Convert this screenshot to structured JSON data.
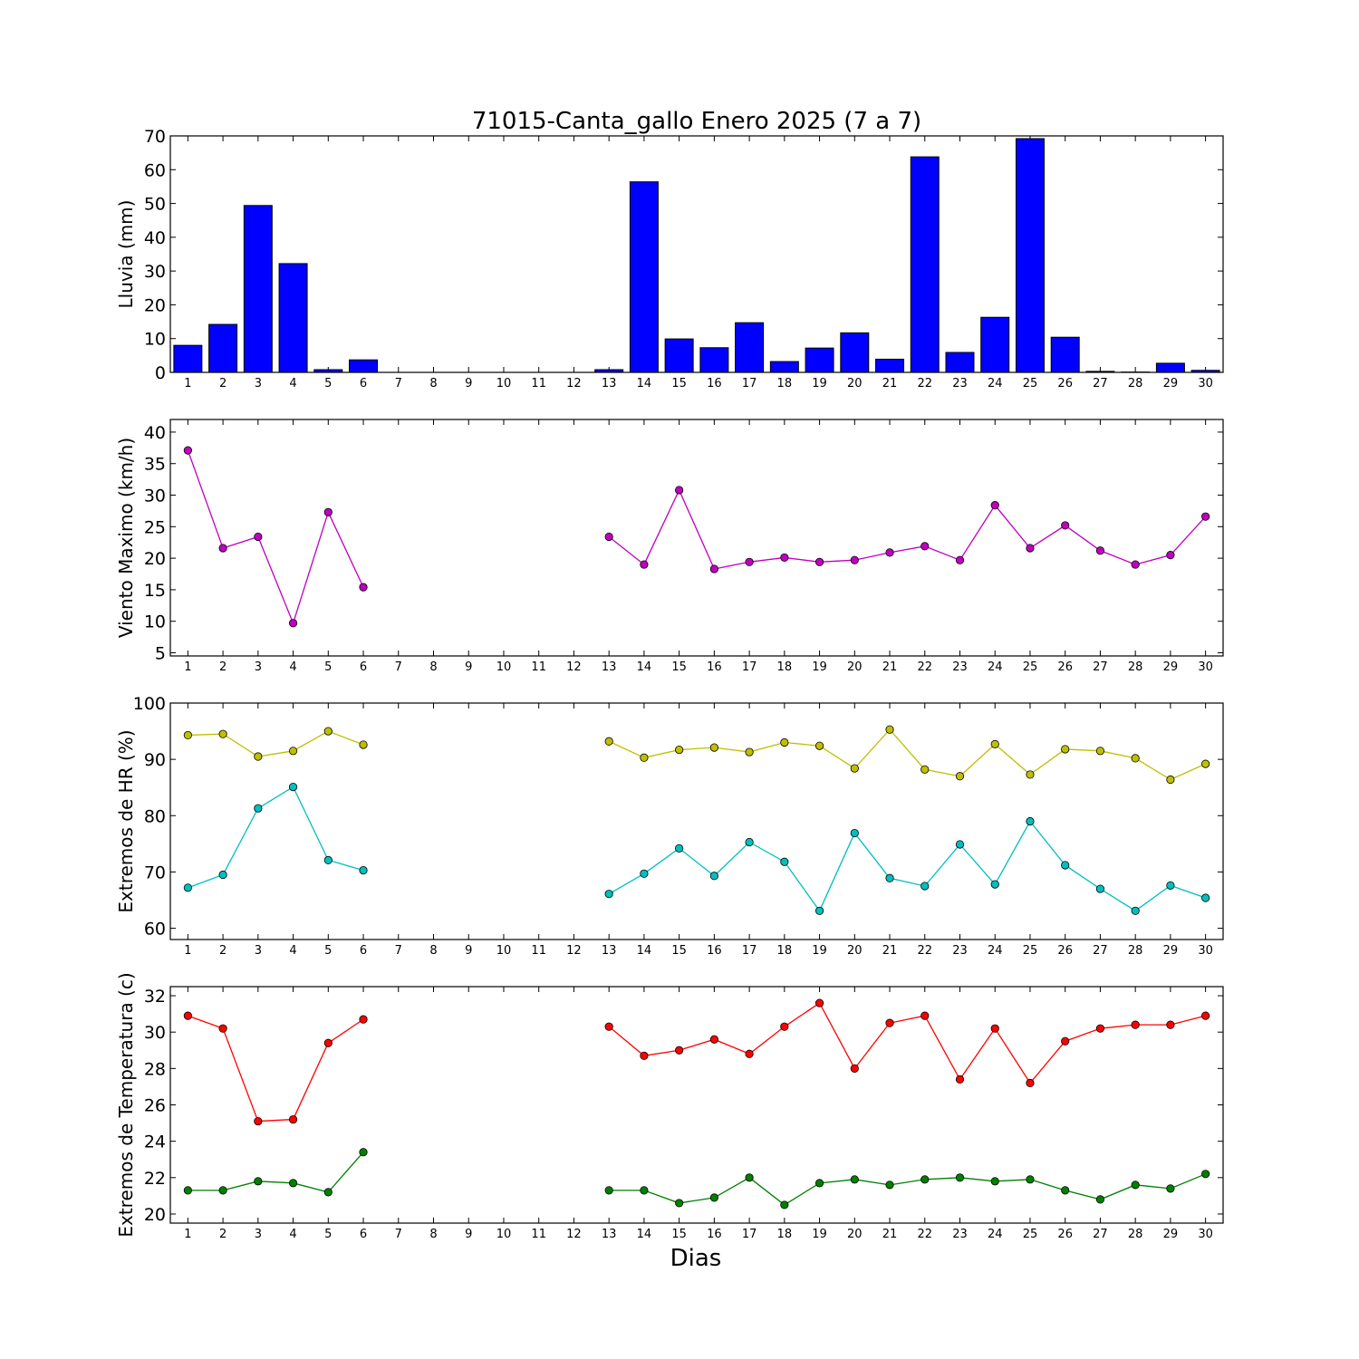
{
  "title": "71015-Canta_gallo Enero 2025  (7 a 7)",
  "xlabel": "Dias",
  "days": [
    1,
    2,
    3,
    4,
    5,
    6,
    7,
    8,
    9,
    10,
    11,
    12,
    13,
    14,
    15,
    16,
    17,
    18,
    19,
    20,
    21,
    22,
    23,
    24,
    25,
    26,
    27,
    28,
    29,
    30
  ],
  "chart_data": [
    {
      "type": "bar",
      "ylabel": "Lluvia (mm)",
      "ylim": [
        0,
        70
      ],
      "yticks": [
        0,
        10,
        20,
        30,
        40,
        50,
        60,
        70
      ],
      "series": [
        {
          "color": "#0000ff",
          "values": [
            8.0,
            14.2,
            49.4,
            32.2,
            0.8,
            3.7,
            null,
            null,
            null,
            null,
            null,
            null,
            0.8,
            56.4,
            9.9,
            7.3,
            14.7,
            3.2,
            7.2,
            11.7,
            3.9,
            63.8,
            5.9,
            16.3,
            69.2,
            10.4,
            0.3,
            0.1,
            2.7,
            0.6
          ]
        }
      ]
    },
    {
      "type": "line",
      "ylabel": "Viento Maximo (km/h)",
      "ylim": [
        4.5,
        42
      ],
      "yticks": [
        5,
        10,
        15,
        20,
        25,
        30,
        35,
        40
      ],
      "series": [
        {
          "color": "#bf00bf",
          "values": [
            37.1,
            21.6,
            23.4,
            9.7,
            27.3,
            15.4,
            null,
            null,
            null,
            null,
            null,
            null,
            23.4,
            19.0,
            30.8,
            18.3,
            19.4,
            20.1,
            19.4,
            19.7,
            20.9,
            21.9,
            19.7,
            28.4,
            21.6,
            25.2,
            21.2,
            19.0,
            20.5,
            26.6
          ]
        }
      ]
    },
    {
      "type": "line",
      "ylabel": "Extremos de HR (%)",
      "ylim": [
        58,
        100
      ],
      "yticks": [
        60,
        70,
        80,
        90,
        100
      ],
      "series": [
        {
          "color": "#bfbf00",
          "values": [
            94.3,
            94.5,
            90.5,
            91.5,
            95.0,
            92.6,
            null,
            null,
            null,
            null,
            null,
            null,
            93.2,
            90.3,
            91.7,
            92.1,
            91.3,
            93.0,
            92.4,
            88.4,
            95.3,
            88.2,
            87.0,
            92.7,
            87.3,
            91.8,
            91.5,
            90.2,
            86.4,
            89.2
          ]
        },
        {
          "color": "#00bfbf",
          "values": [
            67.2,
            69.5,
            81.3,
            85.1,
            72.1,
            70.3,
            null,
            null,
            null,
            null,
            null,
            null,
            66.1,
            69.7,
            74.2,
            69.3,
            75.3,
            71.8,
            63.1,
            76.9,
            68.9,
            67.5,
            74.9,
            67.8,
            79.0,
            71.2,
            67.0,
            63.1,
            67.6,
            65.4
          ]
        }
      ]
    },
    {
      "type": "line",
      "ylabel": "Extremos de Temperatura (c)",
      "ylim": [
        19.5,
        32.5
      ],
      "yticks": [
        20,
        22,
        24,
        26,
        28,
        30,
        32
      ],
      "series": [
        {
          "color": "#ff0000",
          "values": [
            30.9,
            30.2,
            25.1,
            25.2,
            29.4,
            30.7,
            null,
            null,
            null,
            null,
            null,
            null,
            30.3,
            28.7,
            29.0,
            29.6,
            28.8,
            30.3,
            31.6,
            28.0,
            30.5,
            30.9,
            27.4,
            30.2,
            27.2,
            29.5,
            30.2,
            30.4,
            30.4,
            30.9
          ]
        },
        {
          "color": "#007f00",
          "values": [
            21.3,
            21.3,
            21.8,
            21.7,
            21.2,
            23.4,
            null,
            null,
            null,
            null,
            null,
            null,
            21.3,
            21.3,
            20.6,
            20.9,
            22.0,
            20.5,
            21.7,
            21.9,
            21.6,
            21.9,
            22.0,
            21.8,
            21.9,
            21.3,
            20.8,
            21.6,
            21.4,
            22.2
          ]
        }
      ]
    }
  ]
}
